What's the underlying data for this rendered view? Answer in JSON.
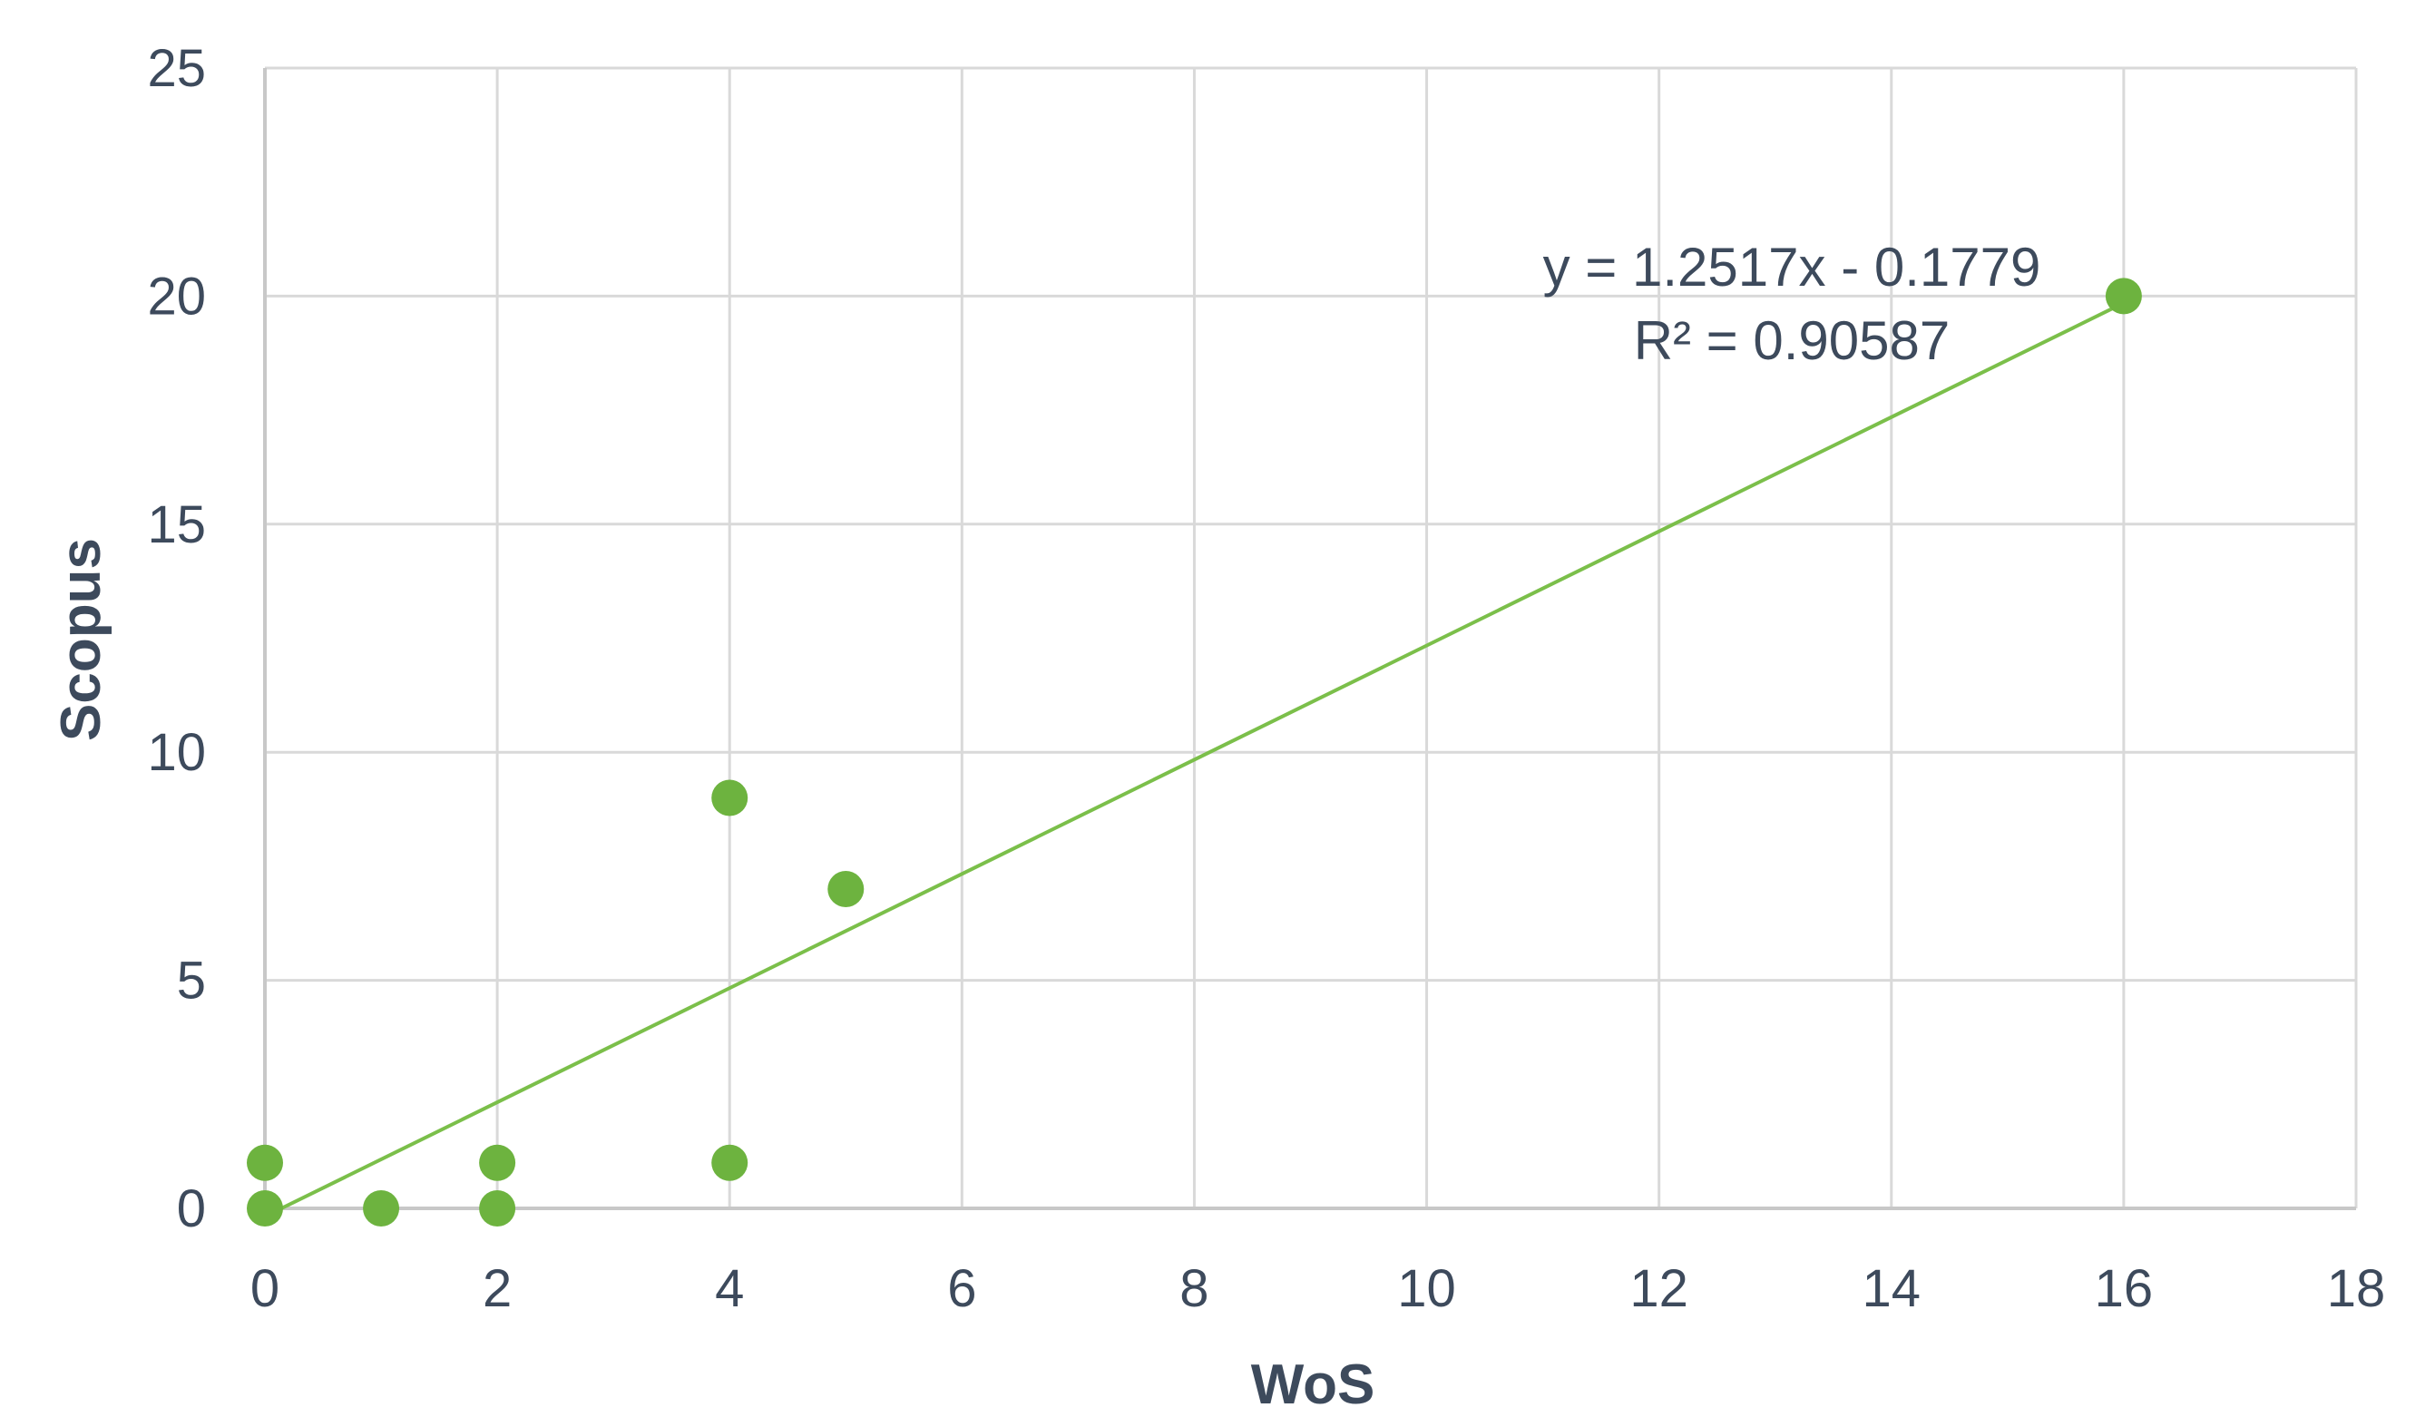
{
  "chart_data": {
    "type": "scatter",
    "title": "",
    "xlabel": "WoS",
    "ylabel": "Scopus",
    "xlim": [
      0,
      18
    ],
    "ylim": [
      0,
      25
    ],
    "xticks": [
      "0",
      "2",
      "4",
      "6",
      "8",
      "10",
      "12",
      "14",
      "16",
      "18"
    ],
    "yticks": [
      "0",
      "5",
      "10",
      "15",
      "20",
      "25"
    ],
    "grid": true,
    "legend": "none",
    "series": [
      {
        "points": [
          {
            "x": 0,
            "y": 1
          },
          {
            "x": 0,
            "y": 0
          },
          {
            "x": 1,
            "y": 0
          },
          {
            "x": 2,
            "y": 1
          },
          {
            "x": 2,
            "y": 0
          },
          {
            "x": 4,
            "y": 9
          },
          {
            "x": 4,
            "y": 1
          },
          {
            "x": 5,
            "y": 7
          },
          {
            "x": 16,
            "y": 20
          }
        ],
        "color": "#6db33f"
      }
    ],
    "trendline": {
      "slope": 1.2517,
      "intercept": -0.1779,
      "x_range": [
        0.14,
        16
      ],
      "color": "#7bbf4a",
      "equation": "y = 1.2517x - 0.1779",
      "r_squared": "R² = 0.90587"
    },
    "gridline_color": "#d9d9d9",
    "text_color": "#3d4a5c"
  }
}
